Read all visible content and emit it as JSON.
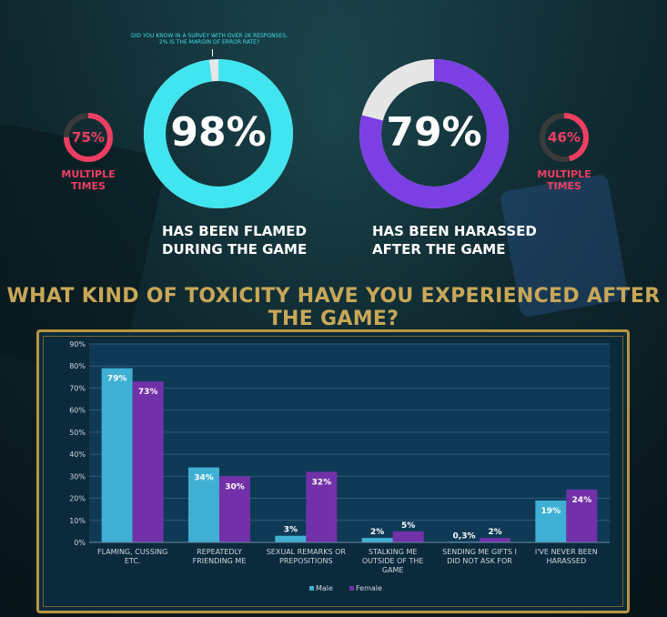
{
  "stats": {
    "flamed": {
      "percent_label": "98%",
      "value": 98,
      "caption_line1": "HAS BEEN FLAMED",
      "caption_line2": "DURING THE GAME",
      "color": "#41e5ef"
    },
    "harassed": {
      "percent_label": "79%",
      "value": 79,
      "caption_line1": "HAS BEEN HARASSED",
      "caption_line2": "AFTER THE GAME",
      "color": "#7b3fe4"
    },
    "multiple_left": {
      "percent_label": "75%",
      "value": 75,
      "caption": "MULTIPLE TIMES",
      "color": "#ee3f63"
    },
    "multiple_right": {
      "percent_label": "46%",
      "value": 46,
      "caption": "MULTIPLE TIMES",
      "color": "#ee3f63"
    }
  },
  "note": {
    "line1": "DID YOU KNOW IN A SURVEY WITH OVER 2K RESPONSES,",
    "line2": "2% IS THE MARGIN OF ERROR RATE?"
  },
  "headline": "WHAT KIND OF TOXICITY HAVE YOU EXPERIENCED AFTER THE GAME?",
  "colors": {
    "gold": "#c9a758",
    "male": "#3fb0d4",
    "female": "#7231a8",
    "ring_track": "#e6e6e6",
    "small_track": "#3a3a3a"
  },
  "chart_data": {
    "type": "bar",
    "title": "",
    "xlabel": "",
    "ylabel": "",
    "ylim": [
      0,
      90
    ],
    "yticks": [
      "0%",
      "10%",
      "20%",
      "30%",
      "40%",
      "50%",
      "60%",
      "70%",
      "80%",
      "90%"
    ],
    "grid": true,
    "legend": "bottom-center",
    "categories": [
      [
        "FLAMING, CUSSING",
        "ETC."
      ],
      [
        "REPEATEDLY",
        "FRIENDING ME"
      ],
      [
        "SEXUAL REMARKS OR",
        "PREPOSITIONS"
      ],
      [
        "STALKING ME",
        "OUTSIDE OF THE",
        "GAME"
      ],
      [
        "SENDING ME GIFTS I",
        "DID NOT ASK FOR"
      ],
      [
        "I'VE NEVER BEEN",
        "HARASSED"
      ]
    ],
    "series": [
      {
        "name": "Male",
        "values": [
          79,
          34,
          3,
          2,
          0.3,
          19
        ],
        "labels": [
          "79%",
          "34%",
          "3%",
          "2%",
          "0,3%",
          "19%"
        ]
      },
      {
        "name": "Female",
        "values": [
          73,
          30,
          32,
          5,
          2,
          24
        ],
        "labels": [
          "73%",
          "30%",
          "32%",
          "5%",
          "2%",
          "24%"
        ]
      }
    ]
  }
}
